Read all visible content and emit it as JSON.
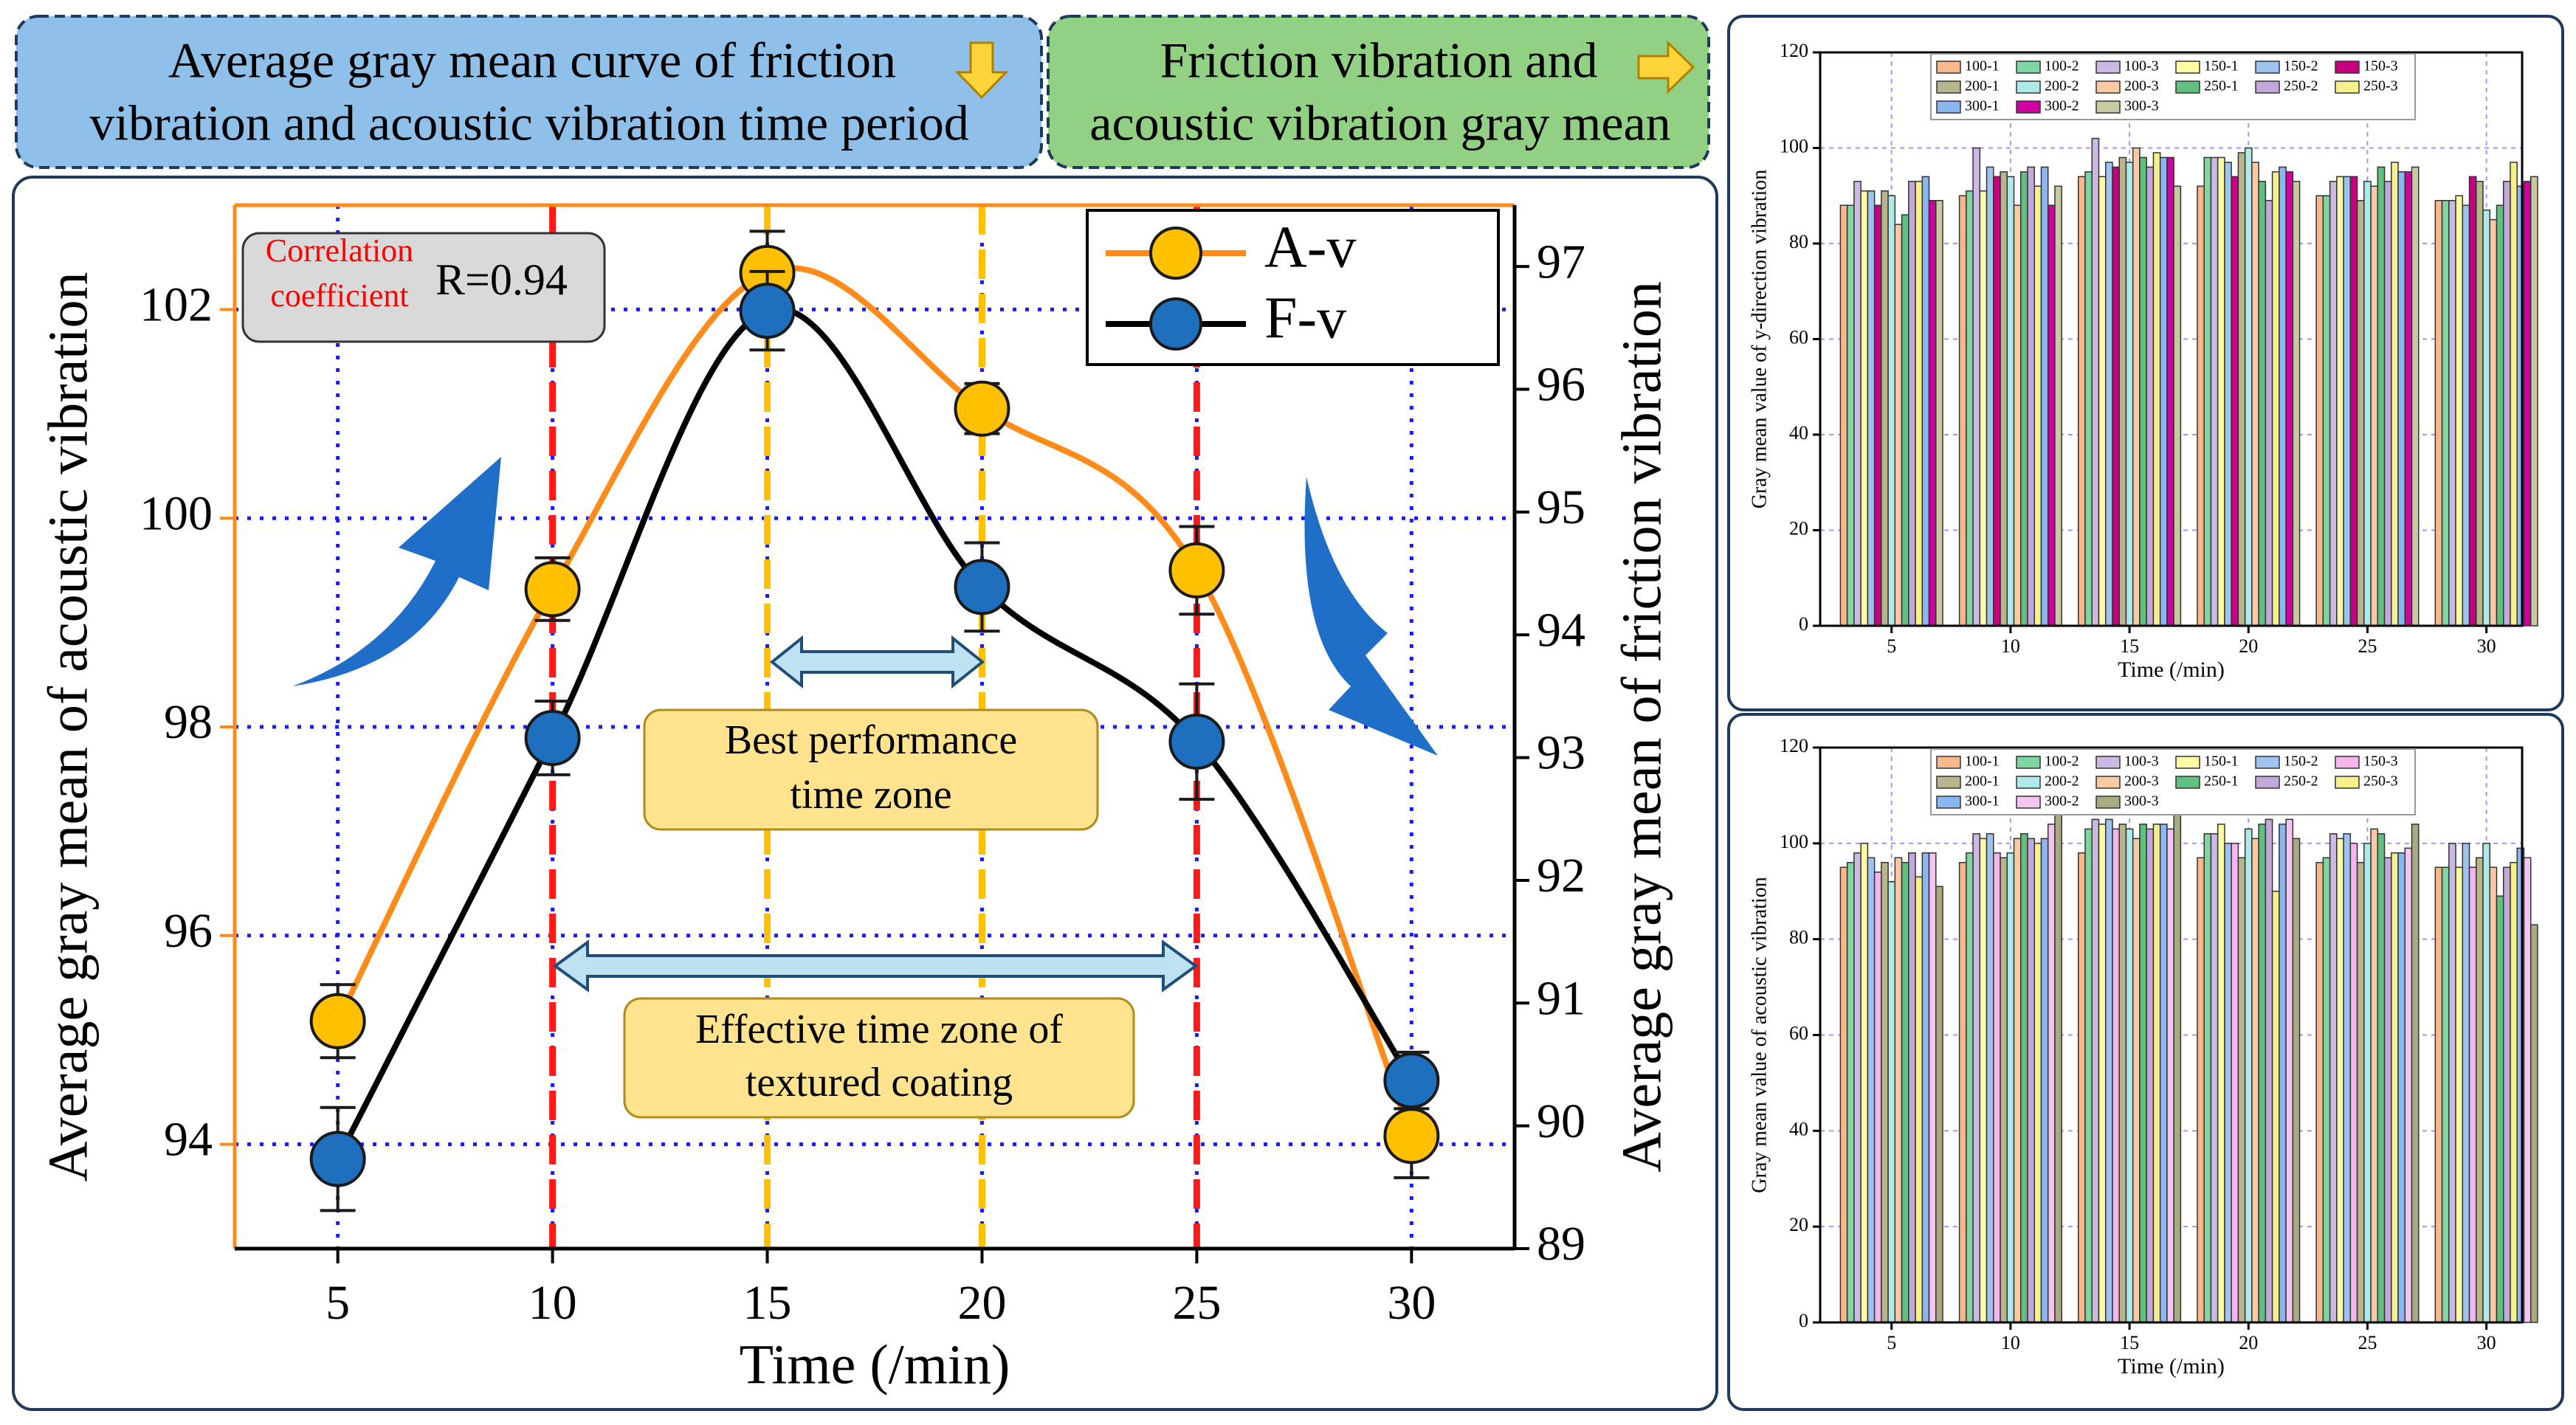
{
  "headers": [
    [
      "Average gray mean curve of friction",
      "vibration and acoustic vibration time period"
    ],
    [
      "Friction vibration and",
      "acoustic vibration gray mean"
    ]
  ],
  "chart_data": [
    {
      "type": "line",
      "x": [
        5,
        10,
        15,
        20,
        25,
        30
      ],
      "xlim": [
        2.6,
        32.4
      ],
      "xticks": [
        5,
        10,
        15,
        20,
        25,
        30
      ],
      "ylim": [
        93,
        103
      ],
      "yticks": [
        94,
        96,
        98,
        100,
        102
      ],
      "y2lim": [
        89,
        97.5
      ],
      "y2ticks": [
        89,
        90,
        91,
        92,
        93,
        94,
        95,
        96,
        97
      ],
      "xlabel": "Time (/min)",
      "ylabel": "Average gray mean of acoustic vibration",
      "y2label": "Average gray mean of friction vibration",
      "grid": true,
      "legend": "upper right",
      "series": [
        {
          "name": "A-v",
          "color": "#ff8c1a",
          "marker_color": "#ffc000",
          "values": [
            95.18,
            99.32,
            102.35,
            101.05,
            99.5,
            94.08
          ],
          "errors": [
            0.35,
            0.3,
            0.4,
            0.24,
            0.42,
            0.4
          ]
        },
        {
          "name": "F-v",
          "color": "#000000",
          "marker_color": "#1f6fbf",
          "axis": "y2",
          "values": [
            89.73,
            93.16,
            96.64,
            94.39,
            93.13,
            90.37
          ],
          "errors": [
            0.42,
            0.3,
            0.32,
            0.36,
            0.47,
            0.23
          ]
        }
      ],
      "vlines": [
        {
          "x": 10,
          "color": "#ff1a1a"
        },
        {
          "x": 15,
          "color": "#ffc000"
        },
        {
          "x": 20,
          "color": "#ffc000"
        },
        {
          "x": 25,
          "color": "#ff1a1a"
        }
      ],
      "annotations": {
        "correlation": [
          "Correlation",
          "coefficient"
        ],
        "r": "R=0.94",
        "best": [
          "Best performance",
          "time zone"
        ],
        "effective": [
          "Effective time zone of",
          "textured coating"
        ]
      }
    },
    {
      "type": "bar",
      "x": [
        5,
        10,
        15,
        20,
        25,
        30
      ],
      "xlim": [
        2,
        31.5
      ],
      "xticks": [
        5,
        10,
        15,
        20,
        25,
        30
      ],
      "ylim": [
        0,
        120
      ],
      "yticks": [
        0,
        20,
        40,
        60,
        80,
        100,
        120
      ],
      "grid": true,
      "xlabel": "Time (/min)",
      "ylabel": "Gray mean value of y-direction vibration",
      "series": [
        {
          "name": "100-1",
          "color": "#f8b88b",
          "values": [
            88,
            90,
            94,
            92,
            90,
            89
          ]
        },
        {
          "name": "100-2",
          "color": "#7fd6a0",
          "values": [
            88,
            91,
            95,
            98,
            90,
            89
          ]
        },
        {
          "name": "100-3",
          "color": "#cbb8e3",
          "values": [
            93,
            100,
            102,
            98,
            93,
            89
          ]
        },
        {
          "name": "150-1",
          "color": "#fffaa6",
          "values": [
            91,
            91,
            94,
            98,
            94,
            90
          ]
        },
        {
          "name": "150-2",
          "color": "#9dc3ee",
          "values": [
            91,
            96,
            97,
            97,
            94,
            88
          ]
        },
        {
          "name": "150-3",
          "color": "#c8007f",
          "values": [
            88,
            94,
            96,
            94,
            94,
            94
          ]
        },
        {
          "name": "200-1",
          "color": "#b8b48c",
          "values": [
            91,
            95,
            98,
            99,
            89,
            93
          ]
        },
        {
          "name": "200-2",
          "color": "#aeeaea",
          "values": [
            90,
            94,
            97,
            100,
            93,
            87
          ]
        },
        {
          "name": "200-3",
          "color": "#f9c9a4",
          "values": [
            84,
            88,
            100,
            97,
            92,
            85
          ]
        },
        {
          "name": "250-1",
          "color": "#5fc080",
          "values": [
            86,
            95,
            98,
            93,
            96,
            88
          ]
        },
        {
          "name": "250-2",
          "color": "#c3a9db",
          "values": [
            93,
            96,
            96,
            89,
            93,
            93
          ]
        },
        {
          "name": "250-3",
          "color": "#f5f08c",
          "values": [
            93,
            92,
            99,
            95,
            97,
            97
          ]
        },
        {
          "name": "300-1",
          "color": "#8ab6f2",
          "values": [
            94,
            96,
            98,
            96,
            95,
            92
          ]
        },
        {
          "name": "300-2",
          "color": "#d000a0",
          "values": [
            89,
            88,
            98,
            95,
            95,
            93
          ]
        },
        {
          "name": "300-3",
          "color": "#c9c9a2",
          "values": [
            89,
            92,
            92,
            93,
            96,
            94
          ]
        }
      ]
    },
    {
      "type": "bar",
      "x": [
        5,
        10,
        15,
        20,
        25,
        30
      ],
      "xlim": [
        2,
        31.5
      ],
      "xticks": [
        5,
        10,
        15,
        20,
        25,
        30
      ],
      "ylim": [
        0,
        120
      ],
      "yticks": [
        0,
        20,
        40,
        60,
        80,
        100,
        120
      ],
      "grid": true,
      "xlabel": "Time (/min)",
      "ylabel": "Gray mean value of acoustic vibration",
      "series": [
        {
          "name": "100-1",
          "color": "#f8b88b",
          "values": [
            95,
            96,
            98,
            97,
            96,
            95
          ]
        },
        {
          "name": "100-2",
          "color": "#7fd6a0",
          "values": [
            96,
            98,
            103,
            102,
            97,
            95
          ]
        },
        {
          "name": "100-3",
          "color": "#cbb8e3",
          "values": [
            98,
            102,
            105,
            102,
            102,
            100
          ]
        },
        {
          "name": "150-1",
          "color": "#fffaa6",
          "values": [
            100,
            101,
            104,
            104,
            101,
            95
          ]
        },
        {
          "name": "150-2",
          "color": "#9dc3ee",
          "values": [
            97,
            102,
            105,
            100,
            102,
            100
          ]
        },
        {
          "name": "150-3",
          "color": "#f7b5ee",
          "values": [
            94,
            98,
            103,
            100,
            100,
            95
          ]
        },
        {
          "name": "200-1",
          "color": "#b8b48c",
          "values": [
            96,
            97,
            104,
            97,
            96,
            97
          ]
        },
        {
          "name": "200-2",
          "color": "#aeeaea",
          "values": [
            92,
            98,
            103,
            103,
            100,
            100
          ]
        },
        {
          "name": "200-3",
          "color": "#f9c9a4",
          "values": [
            97,
            101,
            101,
            101,
            103,
            95
          ]
        },
        {
          "name": "250-1",
          "color": "#5fc080",
          "values": [
            96,
            102,
            104,
            104,
            102,
            89
          ]
        },
        {
          "name": "250-2",
          "color": "#c3a9db",
          "values": [
            98,
            101,
            103,
            105,
            97,
            95
          ]
        },
        {
          "name": "250-3",
          "color": "#f5f08c",
          "values": [
            93,
            100,
            104,
            90,
            98,
            96
          ]
        },
        {
          "name": "300-1",
          "color": "#8ab6f2",
          "values": [
            98,
            101,
            104,
            104,
            98,
            99
          ]
        },
        {
          "name": "300-2",
          "color": "#f2c6ef",
          "values": [
            98,
            104,
            103,
            105,
            99,
            97
          ]
        },
        {
          "name": "300-3",
          "color": "#a9a982",
          "values": [
            91,
            107,
            107,
            101,
            104,
            83
          ]
        }
      ]
    }
  ]
}
